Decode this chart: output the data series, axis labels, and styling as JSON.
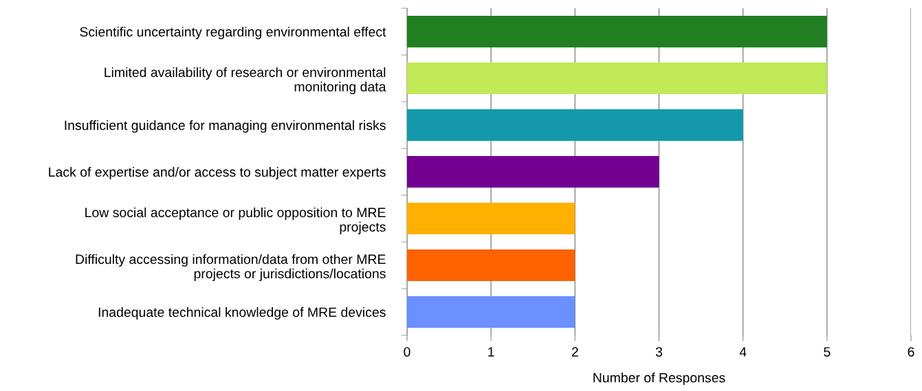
{
  "chart_data": {
    "type": "bar",
    "orientation": "horizontal",
    "xlabel": "Number of Responses",
    "categories": [
      "Scientific uncertainty regarding environmental effect",
      "Limited availability of research or environmental\nmonitoring data",
      "Insufficient guidance for managing environmental risks",
      "Lack of expertise and/or access to subject matter experts",
      "Low social acceptance or public opposition to MRE\nprojects",
      "Difficulty accessing information/data from other MRE\nprojects or jurisdictions/locations",
      "Inadequate technical knowledge of MRE devices"
    ],
    "values": [
      5,
      5,
      4,
      3,
      2,
      2,
      2
    ],
    "colors": [
      "#217f21",
      "#bfe955",
      "#1399ab",
      "#730091",
      "#ffb000",
      "#ff6200",
      "#6a91ff"
    ],
    "xlim": [
      0,
      6
    ],
    "xticks": [
      0,
      1,
      2,
      3,
      4,
      5,
      6
    ],
    "grid": "x",
    "legend": false
  }
}
